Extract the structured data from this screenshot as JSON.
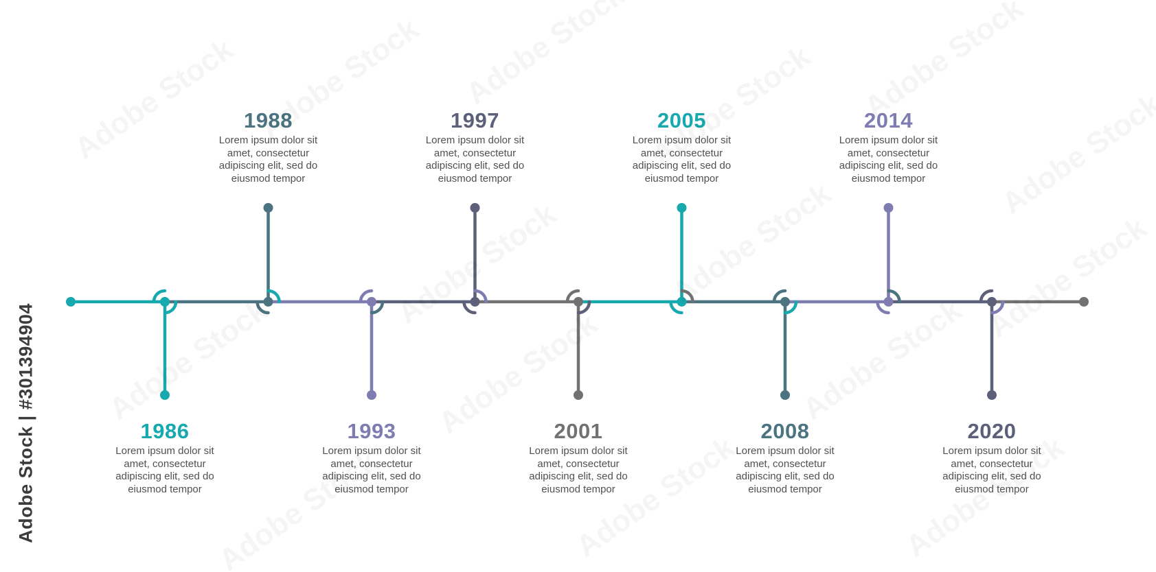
{
  "credit": {
    "text": "Adobe Stock | #301394904"
  },
  "watermark": {
    "text": "Adobe Stock"
  },
  "events": [
    {
      "year": "1986",
      "text": "Lorem ipsum dolor sit amet, consectetur adipiscing elit, sed do eiusmod tempor",
      "position": "below",
      "color": "#17a9ad"
    },
    {
      "year": "1988",
      "text": "Lorem ipsum dolor sit amet, consectetur adipiscing elit, sed do eiusmod tempor",
      "position": "above",
      "color": "#4b7480"
    },
    {
      "year": "1993",
      "text": "Lorem ipsum dolor sit amet, consectetur adipiscing elit, sed do eiusmod tempor",
      "position": "below",
      "color": "#7e7cb0"
    },
    {
      "year": "1997",
      "text": "Lorem ipsum dolor sit amet, consectetur adipiscing elit, sed do eiusmod tempor",
      "position": "above",
      "color": "#5c6078"
    },
    {
      "year": "2001",
      "text": "Lorem ipsum dolor sit amet, consectetur adipiscing elit, sed do eiusmod tempor",
      "position": "below",
      "color": "#727272"
    },
    {
      "year": "2005",
      "text": "Lorem ipsum dolor sit amet, consectetur adipiscing elit, sed do eiusmod tempor",
      "position": "above",
      "color": "#17a9ad"
    },
    {
      "year": "2008",
      "text": "Lorem ipsum dolor sit amet, consectetur adipiscing elit, sed do eiusmod tempor",
      "position": "below",
      "color": "#4b7480"
    },
    {
      "year": "2014",
      "text": "Lorem ipsum dolor sit amet, consectetur adipiscing elit, sed do eiusmod tempor",
      "position": "above",
      "color": "#7e7cb0"
    },
    {
      "year": "2020",
      "text": "Lorem ipsum dolor sit amet, consectetur adipiscing elit, sed do eiusmod tempor",
      "position": "below",
      "color": "#5c6078"
    }
  ],
  "line_end_color": "#727272"
}
